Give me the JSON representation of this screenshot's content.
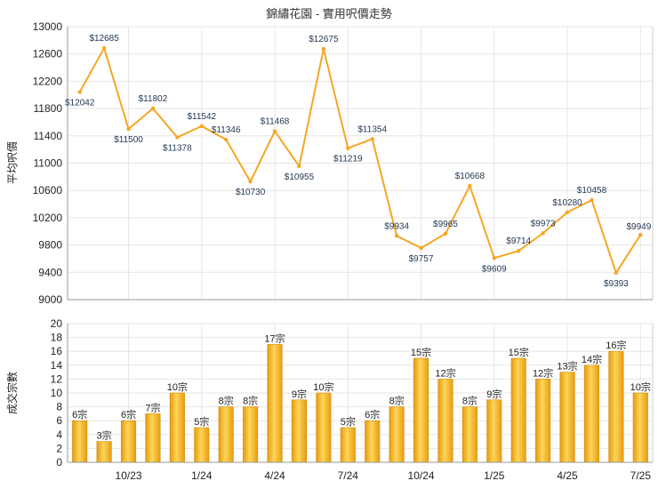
{
  "chart_data": [
    {
      "type": "line",
      "title": "錦繡花園 - 實用呎價走勢",
      "ylabel": "平均呎價",
      "ylim": [
        9000,
        13000
      ],
      "yticks": [
        9000,
        9400,
        9800,
        10200,
        10600,
        11000,
        11400,
        11800,
        12200,
        12600,
        13000
      ],
      "grid": true,
      "color": "#f5a623",
      "values": [
        12042,
        12685,
        11500,
        11802,
        11378,
        11542,
        11346,
        10730,
        11468,
        10955,
        12675,
        11219,
        11354,
        9934,
        9757,
        9965,
        10668,
        9609,
        9714,
        9973,
        10280,
        10458,
        9393,
        9949
      ],
      "labels": [
        "$12042",
        "$12685",
        "$11500",
        "$11802",
        "$11378",
        "$11542",
        "$11346",
        "$10730",
        "$11468",
        "$10955",
        "$12675",
        "$11219",
        "$11354",
        "$9934",
        "$9757",
        "$9965",
        "$10668",
        "$9609",
        "$9714",
        "$9973",
        "$10280",
        "$10458",
        "$9393",
        "$9949"
      ]
    },
    {
      "type": "bar",
      "ylabel": "成交宗數",
      "ylim": [
        0,
        20
      ],
      "yticks": [
        0,
        2,
        4,
        6,
        8,
        10,
        12,
        14,
        16,
        18,
        20
      ],
      "grid": true,
      "color": "#f5b21f",
      "categories": [
        "10/23",
        "1/24",
        "4/24",
        "7/24",
        "10/24",
        "1/25",
        "4/25",
        "7/25"
      ],
      "category_positions": [
        2,
        5,
        8,
        11,
        14,
        17,
        20,
        23
      ],
      "values": [
        6,
        3,
        6,
        7,
        10,
        5,
        8,
        8,
        17,
        9,
        10,
        5,
        6,
        8,
        15,
        12,
        8,
        9,
        15,
        12,
        13,
        14,
        16,
        10
      ],
      "labels": [
        "6宗",
        "3宗",
        "6宗",
        "7宗",
        "10宗",
        "5宗",
        "8宗",
        "8宗",
        "17宗",
        "9宗",
        "10宗",
        "5宗",
        "6宗",
        "8宗",
        "15宗",
        "12宗",
        "8宗",
        "9宗",
        "15宗",
        "12宗",
        "13宗",
        "14宗",
        "16宗",
        "10宗"
      ]
    }
  ]
}
